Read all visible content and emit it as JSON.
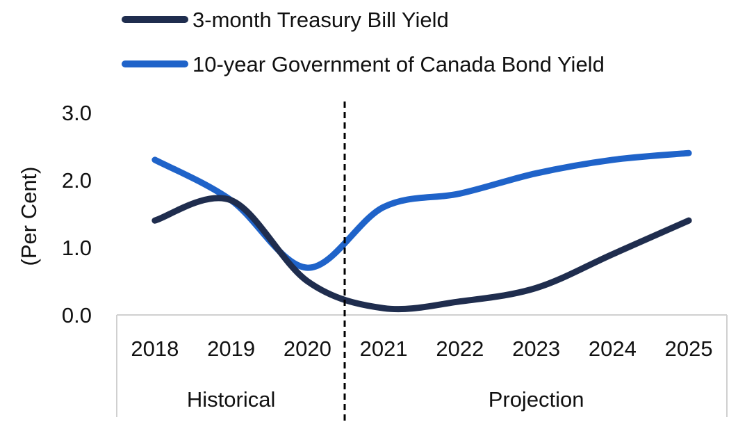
{
  "chart_data": {
    "type": "line",
    "categories": [
      "2018",
      "2019",
      "2020",
      "2021",
      "2022",
      "2023",
      "2024",
      "2025"
    ],
    "groups": [
      {
        "label": "Historical",
        "categories": [
          "2018",
          "2019",
          "2020"
        ]
      },
      {
        "label": "Projection",
        "categories": [
          "2021",
          "2022",
          "2023",
          "2024",
          "2025"
        ]
      }
    ],
    "series": [
      {
        "name": "3-month Treasury Bill Yield",
        "color": "#1f2d4e",
        "values": [
          1.4,
          1.7,
          0.5,
          0.1,
          0.2,
          0.4,
          0.9,
          1.4
        ]
      },
      {
        "name": "10-year Government of Canada Bond Yield",
        "color": "#1f63c9",
        "values": [
          2.3,
          1.7,
          0.7,
          1.6,
          1.8,
          2.1,
          2.3,
          2.4
        ]
      }
    ],
    "ylabel": "(Per Cent)",
    "yticks": [
      "0.0",
      "1.0",
      "2.0",
      "3.0"
    ],
    "ylim": [
      0,
      3
    ],
    "grid": false,
    "legend_position": "top-left",
    "divider": "dashed line between 2020 and 2021"
  }
}
